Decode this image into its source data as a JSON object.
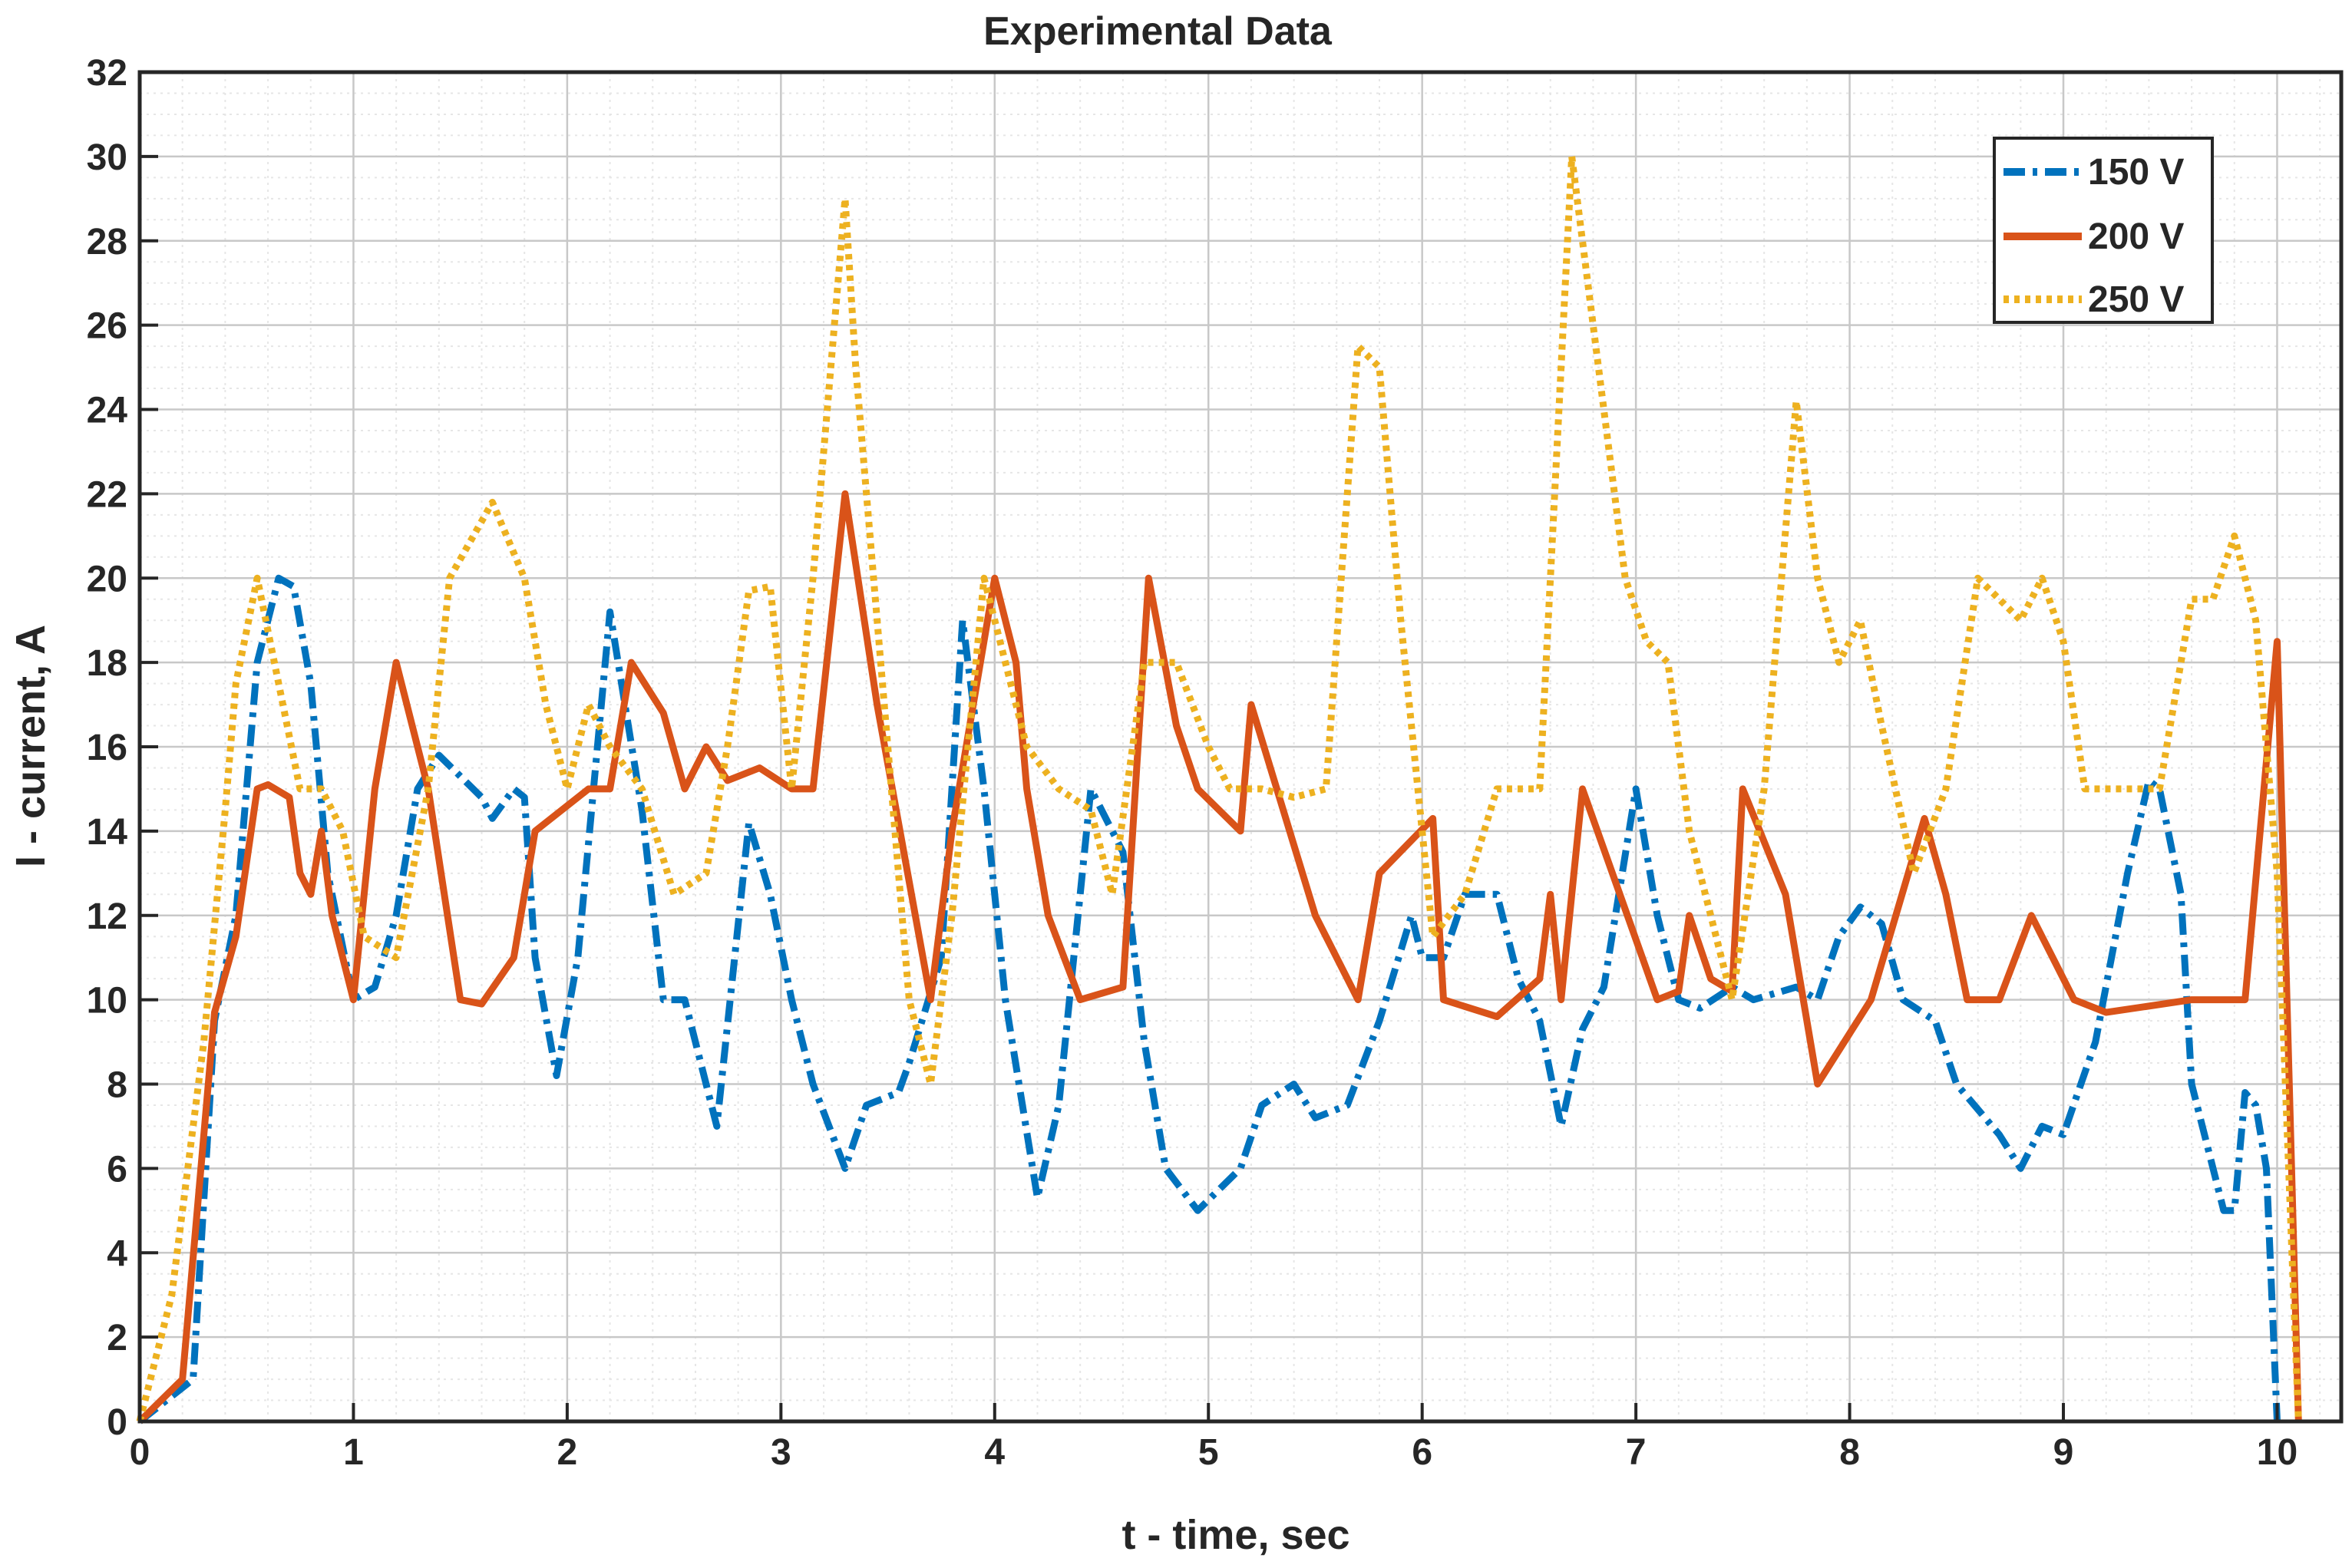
{
  "chart_data": {
    "type": "line",
    "title": "Experimental Data",
    "xlabel": "t - time, sec",
    "ylabel": "I - current, A",
    "xlim": [
      0,
      10.3
    ],
    "ylim": [
      0,
      32
    ],
    "x_ticks": [
      0,
      1,
      2,
      3,
      4,
      5,
      6,
      7,
      8,
      9,
      10
    ],
    "y_ticks": [
      0,
      2,
      4,
      6,
      8,
      10,
      12,
      14,
      16,
      18,
      20,
      22,
      24,
      26,
      28,
      30,
      32
    ],
    "x_tick_labels": [
      "0",
      "1",
      "2",
      "3",
      "4",
      "5",
      "6",
      "7",
      "8",
      "9",
      "10"
    ],
    "y_tick_labels": [
      "0",
      "2",
      "4",
      "6",
      "8",
      "10",
      "12",
      "14",
      "16",
      "18",
      "20",
      "22",
      "24",
      "26",
      "28",
      "30",
      "32"
    ],
    "grid": true,
    "minor_grid": true,
    "legend_position": "top-right",
    "series": [
      {
        "name": "150 V",
        "color": "#0072BD",
        "style": "dashdot",
        "points": [
          [
            0,
            0
          ],
          [
            0.25,
            1
          ],
          [
            0.35,
            9.5
          ],
          [
            0.45,
            12
          ],
          [
            0.55,
            18
          ],
          [
            0.65,
            20
          ],
          [
            0.72,
            19.8
          ],
          [
            0.8,
            17.5
          ],
          [
            0.88,
            13
          ],
          [
            1.0,
            10
          ],
          [
            1.1,
            10.3
          ],
          [
            1.2,
            12
          ],
          [
            1.3,
            15
          ],
          [
            1.4,
            15.8
          ],
          [
            1.6,
            14.8
          ],
          [
            1.65,
            14.3
          ],
          [
            1.75,
            15
          ],
          [
            1.8,
            14.8
          ],
          [
            1.85,
            11
          ],
          [
            1.95,
            8.2
          ],
          [
            2.05,
            11
          ],
          [
            2.2,
            19.2
          ],
          [
            2.35,
            14.5
          ],
          [
            2.45,
            10
          ],
          [
            2.55,
            10
          ],
          [
            2.7,
            7
          ],
          [
            2.85,
            14.2
          ],
          [
            2.95,
            12.5
          ],
          [
            3.05,
            10
          ],
          [
            3.15,
            8
          ],
          [
            3.3,
            6
          ],
          [
            3.4,
            7.5
          ],
          [
            3.55,
            7.8
          ],
          [
            3.6,
            8.5
          ],
          [
            3.75,
            11
          ],
          [
            3.85,
            19
          ],
          [
            3.95,
            15
          ],
          [
            4.05,
            10
          ],
          [
            4.2,
            5.3
          ],
          [
            4.3,
            7.5
          ],
          [
            4.45,
            15
          ],
          [
            4.6,
            13.5
          ],
          [
            4.7,
            9
          ],
          [
            4.8,
            6
          ],
          [
            4.95,
            5
          ],
          [
            5.15,
            6
          ],
          [
            5.25,
            7.5
          ],
          [
            5.4,
            8
          ],
          [
            5.5,
            7.2
          ],
          [
            5.65,
            7.5
          ],
          [
            5.8,
            9.5
          ],
          [
            5.95,
            12
          ],
          [
            6.0,
            11
          ],
          [
            6.1,
            11
          ],
          [
            6.2,
            12.5
          ],
          [
            6.35,
            12.5
          ],
          [
            6.45,
            10.5
          ],
          [
            6.55,
            9.5
          ],
          [
            6.65,
            7
          ],
          [
            6.75,
            9.3
          ],
          [
            6.85,
            10.3
          ],
          [
            7.0,
            15
          ],
          [
            7.1,
            12
          ],
          [
            7.2,
            10
          ],
          [
            7.3,
            9.8
          ],
          [
            7.45,
            10.3
          ],
          [
            7.55,
            10
          ],
          [
            7.75,
            10.3
          ],
          [
            7.85,
            10
          ],
          [
            7.95,
            11.5
          ],
          [
            8.05,
            12.2
          ],
          [
            8.15,
            11.8
          ],
          [
            8.25,
            10
          ],
          [
            8.4,
            9.5
          ],
          [
            8.5,
            8
          ],
          [
            8.7,
            6.8
          ],
          [
            8.8,
            6
          ],
          [
            8.9,
            7
          ],
          [
            9.0,
            6.8
          ],
          [
            9.15,
            9
          ],
          [
            9.3,
            13
          ],
          [
            9.4,
            15.2
          ],
          [
            9.45,
            15
          ],
          [
            9.55,
            12.5
          ],
          [
            9.6,
            8
          ],
          [
            9.75,
            5
          ],
          [
            9.8,
            5
          ],
          [
            9.85,
            7.8
          ],
          [
            9.9,
            7.5
          ],
          [
            9.95,
            6
          ],
          [
            10.0,
            0
          ]
        ]
      },
      {
        "name": "200 V",
        "color": "#D95319",
        "style": "solid",
        "points": [
          [
            0,
            0
          ],
          [
            0.2,
            1
          ],
          [
            0.35,
            9.7
          ],
          [
            0.45,
            11.5
          ],
          [
            0.55,
            15
          ],
          [
            0.6,
            15.1
          ],
          [
            0.7,
            14.8
          ],
          [
            0.75,
            13
          ],
          [
            0.8,
            12.5
          ],
          [
            0.85,
            14
          ],
          [
            0.9,
            12
          ],
          [
            1.0,
            10
          ],
          [
            1.1,
            15
          ],
          [
            1.2,
            18
          ],
          [
            1.35,
            15
          ],
          [
            1.5,
            10
          ],
          [
            1.6,
            9.9
          ],
          [
            1.75,
            11
          ],
          [
            1.85,
            14
          ],
          [
            2.1,
            15
          ],
          [
            2.2,
            15
          ],
          [
            2.3,
            18
          ],
          [
            2.45,
            16.8
          ],
          [
            2.55,
            15
          ],
          [
            2.65,
            16
          ],
          [
            2.75,
            15.2
          ],
          [
            2.9,
            15.5
          ],
          [
            3.05,
            15
          ],
          [
            3.15,
            15
          ],
          [
            3.3,
            22
          ],
          [
            3.45,
            17
          ],
          [
            3.7,
            10
          ],
          [
            3.8,
            14
          ],
          [
            3.9,
            17
          ],
          [
            4.0,
            20
          ],
          [
            4.1,
            18
          ],
          [
            4.15,
            15
          ],
          [
            4.25,
            12
          ],
          [
            4.4,
            10
          ],
          [
            4.6,
            10.3
          ],
          [
            4.72,
            20
          ],
          [
            4.85,
            16.5
          ],
          [
            4.95,
            15
          ],
          [
            5.15,
            14
          ],
          [
            5.2,
            17
          ],
          [
            5.5,
            12
          ],
          [
            5.7,
            10
          ],
          [
            5.8,
            13
          ],
          [
            6.05,
            14.3
          ],
          [
            6.1,
            10
          ],
          [
            6.35,
            9.6
          ],
          [
            6.55,
            10.5
          ],
          [
            6.6,
            12.5
          ],
          [
            6.65,
            10
          ],
          [
            6.75,
            15
          ],
          [
            7.1,
            10
          ],
          [
            7.2,
            10.2
          ],
          [
            7.25,
            12
          ],
          [
            7.35,
            10.5
          ],
          [
            7.45,
            10.2
          ],
          [
            7.5,
            15
          ],
          [
            7.7,
            12.5
          ],
          [
            7.85,
            8
          ],
          [
            8.1,
            10
          ],
          [
            8.35,
            14.3
          ],
          [
            8.45,
            12.5
          ],
          [
            8.55,
            10
          ],
          [
            8.7,
            10
          ],
          [
            8.85,
            12
          ],
          [
            8.95,
            11
          ],
          [
            9.05,
            10
          ],
          [
            9.2,
            9.7
          ],
          [
            9.6,
            10
          ],
          [
            9.85,
            10
          ],
          [
            10.0,
            18.5
          ],
          [
            10.1,
            0
          ]
        ]
      },
      {
        "name": "250 V",
        "color": "#EDB120",
        "style": "dotted",
        "points": [
          [
            0,
            0
          ],
          [
            0.15,
            3
          ],
          [
            0.3,
            9
          ],
          [
            0.4,
            14.5
          ],
          [
            0.45,
            17.5
          ],
          [
            0.55,
            20
          ],
          [
            0.65,
            17.5
          ],
          [
            0.75,
            15
          ],
          [
            0.85,
            15
          ],
          [
            0.95,
            14
          ],
          [
            1.05,
            11.5
          ],
          [
            1.2,
            11
          ],
          [
            1.35,
            15
          ],
          [
            1.45,
            20
          ],
          [
            1.65,
            21.8
          ],
          [
            1.8,
            20
          ],
          [
            1.9,
            17
          ],
          [
            2.0,
            15
          ],
          [
            2.1,
            17
          ],
          [
            2.2,
            16
          ],
          [
            2.35,
            15
          ],
          [
            2.5,
            12.5
          ],
          [
            2.65,
            13
          ],
          [
            2.75,
            16
          ],
          [
            2.85,
            19.7
          ],
          [
            2.95,
            19.8
          ],
          [
            3.05,
            15
          ],
          [
            3.15,
            20
          ],
          [
            3.3,
            29
          ],
          [
            3.35,
            25
          ],
          [
            3.5,
            16
          ],
          [
            3.6,
            10
          ],
          [
            3.7,
            8
          ],
          [
            3.8,
            12
          ],
          [
            3.95,
            20
          ],
          [
            4.05,
            18
          ],
          [
            4.15,
            16
          ],
          [
            4.3,
            15
          ],
          [
            4.45,
            14.5
          ],
          [
            4.55,
            12.5
          ],
          [
            4.7,
            18
          ],
          [
            4.85,
            18
          ],
          [
            5.0,
            16
          ],
          [
            5.1,
            15
          ],
          [
            5.25,
            15
          ],
          [
            5.4,
            14.8
          ],
          [
            5.55,
            15
          ],
          [
            5.7,
            25.5
          ],
          [
            5.8,
            25
          ],
          [
            5.9,
            19
          ],
          [
            6.05,
            11.5
          ],
          [
            6.2,
            12.5
          ],
          [
            6.35,
            15
          ],
          [
            6.45,
            15
          ],
          [
            6.55,
            15
          ],
          [
            6.7,
            30
          ],
          [
            6.8,
            26
          ],
          [
            6.95,
            20
          ],
          [
            7.05,
            18.5
          ],
          [
            7.15,
            18
          ],
          [
            7.25,
            14
          ],
          [
            7.35,
            12
          ],
          [
            7.45,
            10
          ],
          [
            7.6,
            15
          ],
          [
            7.75,
            24.2
          ],
          [
            7.85,
            20
          ],
          [
            7.95,
            18
          ],
          [
            8.05,
            19
          ],
          [
            8.15,
            16.5
          ],
          [
            8.3,
            13
          ],
          [
            8.45,
            15
          ],
          [
            8.6,
            20
          ],
          [
            8.7,
            19.5
          ],
          [
            8.8,
            19
          ],
          [
            8.9,
            20
          ],
          [
            9.0,
            18.5
          ],
          [
            9.1,
            15
          ],
          [
            9.3,
            15
          ],
          [
            9.45,
            15
          ],
          [
            9.6,
            19.5
          ],
          [
            9.7,
            19.5
          ],
          [
            9.8,
            21
          ],
          [
            9.9,
            19
          ],
          [
            10.0,
            13
          ],
          [
            10.1,
            0
          ]
        ]
      }
    ]
  }
}
